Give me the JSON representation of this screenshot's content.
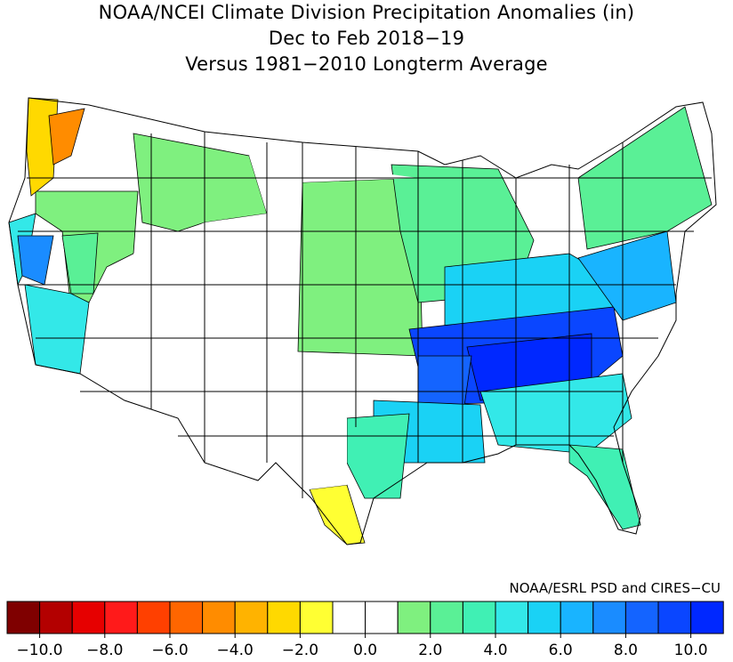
{
  "title": {
    "line1": "NOAA/NCEI Climate Division Precipitation Anomalies (in)",
    "line2": "Dec to Feb 2018−19",
    "line3": "Versus 1981−2010 Longterm Average"
  },
  "credit": "NOAA/ESRL PSD and CIRES−CU",
  "legend": {
    "colors": [
      "#7f0000",
      "#b30000",
      "#e60000",
      "#ff1a1a",
      "#ff4000",
      "#ff6600",
      "#ff8c00",
      "#ffb300",
      "#ffd900",
      "#ffff33",
      "#ffffff",
      "#ffffff",
      "#7ff07f",
      "#5af096",
      "#40f0b4",
      "#33e8e8",
      "#1ad2f5",
      "#19b4ff",
      "#1a8cff",
      "#1464ff",
      "#0a46ff",
      "#0028ff"
    ],
    "tick_labels": [
      "−10.0",
      "−8.0",
      "−6.0",
      "−4.0",
      "−2.0",
      "0.0",
      "2.0",
      "4.0",
      "6.0",
      "8.0",
      "10.0"
    ]
  },
  "regions": [
    {
      "name": "washington-west-coast-anomaly",
      "color": "#ffd900"
    },
    {
      "name": "washington-olympic-anomaly",
      "color": "#ff8c00"
    },
    {
      "name": "california-coast-anomaly",
      "color": "#33e8e8"
    },
    {
      "name": "california-central-anomaly",
      "color": "#1a8cff"
    },
    {
      "name": "west-interior-anomaly",
      "color": "#7ff07f"
    },
    {
      "name": "great-basin-anomaly",
      "color": "#5af096"
    },
    {
      "name": "southwest-coast-anomaly",
      "color": "#33e8e8"
    },
    {
      "name": "northern-rockies-anomaly",
      "color": "#7ff07f"
    },
    {
      "name": "great-plains-anomaly",
      "color": "#7ff07f"
    },
    {
      "name": "midwest-anomaly",
      "color": "#5af096"
    },
    {
      "name": "ohio-valley-anomaly",
      "color": "#1ad2f5"
    },
    {
      "name": "tennessee-valley-anomaly",
      "color": "#0a46ff"
    },
    {
      "name": "tennessee-core-anomaly",
      "color": "#0028ff"
    },
    {
      "name": "mississippi-delta-anomaly",
      "color": "#1464ff"
    },
    {
      "name": "gulf-coast-anomaly",
      "color": "#1ad2f5"
    },
    {
      "name": "southeast-anomaly",
      "color": "#33e8e8"
    },
    {
      "name": "florida-anomaly",
      "color": "#40f0b4"
    },
    {
      "name": "mid-atlantic-anomaly",
      "color": "#19b4ff"
    },
    {
      "name": "northeast-anomaly",
      "color": "#5af096"
    },
    {
      "name": "south-texas-anomaly",
      "color": "#ffff33"
    },
    {
      "name": "texas-east-anomaly",
      "color": "#40f0b4"
    }
  ]
}
